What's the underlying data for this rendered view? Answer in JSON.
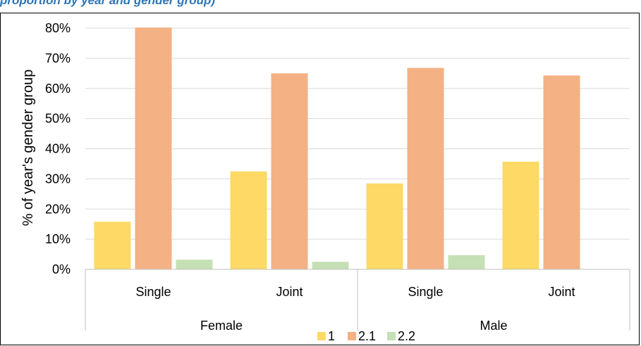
{
  "caption_fragment": "proportion by year and gender group)",
  "chart_data": {
    "type": "bar",
    "ylabel": "% of year's gender group",
    "ylim": [
      0,
      0.8
    ],
    "yticks": [
      "0%",
      "10%",
      "20%",
      "30%",
      "40%",
      "50%",
      "60%",
      "70%",
      "80%"
    ],
    "groups": [
      {
        "name": "Female",
        "categories": [
          "Single",
          "Joint"
        ]
      },
      {
        "name": "Male",
        "categories": [
          "Single",
          "Joint"
        ]
      }
    ],
    "series": [
      {
        "name": "1",
        "color": "#ffd966",
        "values": [
          0.158,
          0.325,
          0.285,
          0.357
        ]
      },
      {
        "name": "2.1",
        "color": "#f4b183",
        "values": [
          0.802,
          0.65,
          0.668,
          0.643
        ]
      },
      {
        "name": "2.2",
        "color": "#c5e0b4",
        "values": [
          0.032,
          0.025,
          0.047,
          0.0
        ]
      }
    ],
    "grid": true,
    "legend": "bottom"
  }
}
